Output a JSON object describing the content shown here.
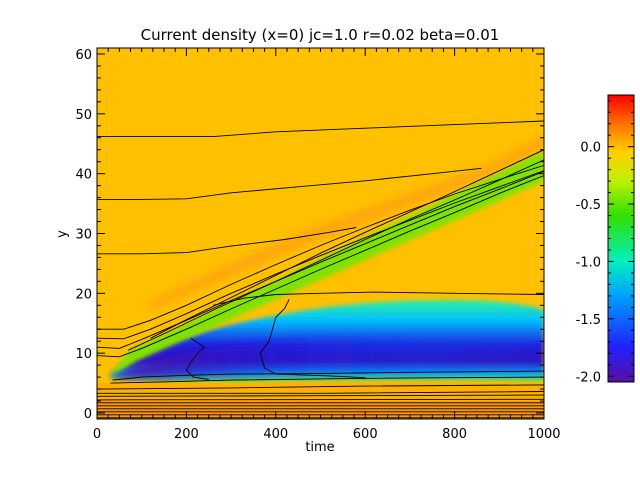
{
  "chart_data": {
    "type": "heatmap",
    "title": "Current density (x=0) jc=1.0 r=0.02 beta=0.01",
    "xlabel": "time",
    "ylabel": "y",
    "xlim": [
      0,
      1000
    ],
    "ylim": [
      -1,
      61
    ],
    "x_ticks": [
      0,
      200,
      400,
      600,
      800,
      1000
    ],
    "y_ticks": [
      0,
      10,
      20,
      30,
      40,
      50,
      60
    ],
    "colorbar": {
      "range": [
        -2.05,
        0.45
      ],
      "ticks": [
        0.0,
        -0.5,
        -1.0,
        -1.5,
        -2.0
      ],
      "tick_labels": [
        "0.0",
        "-0.5",
        "-1.0",
        "-1.5",
        "-2.0"
      ],
      "colormap": "rainbow (violet = -2.0, red = +0.4)"
    },
    "background_value": 0.15,
    "features": [
      {
        "name": "diagonal front",
        "value": -0.8,
        "from": [
          30,
          9.5
        ],
        "to": [
          1000,
          42
        ],
        "width": 3.5
      },
      {
        "name": "low region",
        "value": -1.9,
        "x_start": 40,
        "y_center": 8.5
      },
      {
        "name": "upper current sheet",
        "value": 0.4,
        "from": [
          80,
          13
        ],
        "to": [
          1000,
          45.5
        ]
      }
    ],
    "contours": [
      [
        [
          0,
          46.2
        ],
        [
          100,
          46.2
        ],
        [
          260,
          46.2
        ],
        [
          400,
          47
        ],
        [
          600,
          47.6
        ],
        [
          800,
          48.2
        ],
        [
          1000,
          48.8
        ]
      ],
      [
        [
          0,
          35.7
        ],
        [
          100,
          35.7
        ],
        [
          200,
          35.8
        ],
        [
          300,
          36.8
        ],
        [
          450,
          37.8
        ],
        [
          600,
          38.8
        ],
        [
          750,
          40
        ],
        [
          860,
          40.9
        ]
      ],
      [
        [
          0,
          26.6
        ],
        [
          100,
          26.6
        ],
        [
          200,
          26.8
        ],
        [
          300,
          27.9
        ],
        [
          420,
          29
        ],
        [
          520,
          30.2
        ],
        [
          580,
          31
        ]
      ],
      [
        [
          0,
          14
        ],
        [
          60,
          14
        ],
        [
          120,
          15.5
        ],
        [
          200,
          18
        ],
        [
          300,
          21.5
        ],
        [
          400,
          24.8
        ],
        [
          500,
          28
        ],
        [
          600,
          31
        ],
        [
          700,
          33.9
        ],
        [
          800,
          36.6
        ],
        [
          900,
          39
        ],
        [
          1000,
          41.4
        ]
      ],
      [
        [
          0,
          12.5
        ],
        [
          60,
          12.4
        ],
        [
          120,
          14
        ],
        [
          200,
          16.6
        ],
        [
          300,
          20
        ],
        [
          400,
          23.2
        ],
        [
          500,
          26.3
        ],
        [
          600,
          29.3
        ],
        [
          700,
          32.2
        ],
        [
          800,
          35.1
        ],
        [
          900,
          37.8
        ],
        [
          1000,
          40.5
        ]
      ],
      [
        [
          0,
          11
        ],
        [
          50,
          10.8
        ],
        [
          100,
          12.3
        ],
        [
          200,
          15.5
        ],
        [
          300,
          18.8
        ],
        [
          400,
          22
        ],
        [
          500,
          25.2
        ],
        [
          600,
          28.3
        ],
        [
          700,
          31.4
        ],
        [
          800,
          34.5
        ],
        [
          900,
          37.4
        ],
        [
          1000,
          40.4
        ]
      ],
      [
        [
          0,
          9.6
        ],
        [
          50,
          9.4
        ],
        [
          100,
          10.8
        ],
        [
          200,
          14
        ],
        [
          300,
          17.4
        ],
        [
          400,
          20.7
        ],
        [
          500,
          24
        ],
        [
          600,
          27.2
        ],
        [
          700,
          30.4
        ],
        [
          800,
          33.5
        ],
        [
          900,
          36.7
        ],
        [
          1000,
          39.7
        ]
      ],
      [
        [
          70,
          10.5
        ],
        [
          160,
          13.6
        ],
        [
          260,
          17.2
        ],
        [
          400,
          22
        ],
        [
          500,
          25.5
        ],
        [
          600,
          29
        ],
        [
          700,
          32.4
        ],
        [
          800,
          35.6
        ],
        [
          900,
          38.9
        ],
        [
          1000,
          42.3
        ]
      ],
      [
        [
          120,
          12.5
        ],
        [
          200,
          15.6
        ],
        [
          300,
          19.3
        ],
        [
          400,
          23
        ],
        [
          500,
          26.7
        ],
        [
          600,
          30.2
        ],
        [
          700,
          33.6
        ],
        [
          800,
          37
        ],
        [
          900,
          40.5
        ],
        [
          1000,
          44
        ]
      ],
      [
        [
          35,
          5.5
        ],
        [
          100,
          6
        ],
        [
          200,
          6.3
        ],
        [
          300,
          6.5
        ],
        [
          500,
          6.6
        ],
        [
          700,
          6.8
        ],
        [
          1000,
          7
        ]
      ],
      [
        [
          30,
          5
        ],
        [
          150,
          5.2
        ],
        [
          300,
          5.5
        ],
        [
          600,
          5.8
        ],
        [
          1000,
          6
        ]
      ],
      [
        [
          0,
          4
        ],
        [
          300,
          4.2
        ],
        [
          600,
          4.5
        ],
        [
          1000,
          4.7
        ]
      ],
      [
        [
          0,
          3.3
        ],
        [
          500,
          3.3
        ],
        [
          1000,
          3.6
        ]
      ],
      [
        [
          0,
          2.8
        ],
        [
          500,
          2.9
        ],
        [
          1000,
          3
        ]
      ],
      [
        [
          0,
          2.2
        ],
        [
          1000,
          2.3
        ]
      ],
      [
        [
          0,
          1.7
        ],
        [
          1000,
          1.7
        ]
      ],
      [
        [
          0,
          1.2
        ],
        [
          1000,
          1.2
        ]
      ],
      [
        [
          0,
          0.7
        ],
        [
          1000,
          0.7
        ]
      ],
      [
        [
          0,
          0.2
        ],
        [
          1000,
          0.2
        ]
      ],
      [
        [
          0,
          -0.3
        ],
        [
          1000,
          -0.3
        ]
      ],
      [
        [
          0,
          -0.8
        ],
        [
          1000,
          -0.8
        ]
      ],
      [
        [
          210,
          12.5
        ],
        [
          240,
          11
        ],
        [
          225,
          10
        ],
        [
          210,
          8.5
        ],
        [
          200,
          7.2
        ],
        [
          215,
          6
        ],
        [
          250,
          5.6
        ]
      ],
      [
        [
          430,
          19
        ],
        [
          420,
          17.5
        ],
        [
          400,
          16
        ],
        [
          385,
          12
        ],
        [
          365,
          10
        ],
        [
          375,
          7.5
        ],
        [
          400,
          6.5
        ],
        [
          520,
          6.2
        ],
        [
          600,
          5.9
        ]
      ],
      [
        [
          260,
          18
        ],
        [
          330,
          19.2
        ],
        [
          400,
          19.8
        ],
        [
          500,
          20
        ],
        [
          620,
          20.2
        ],
        [
          800,
          20
        ],
        [
          1000,
          19.8
        ]
      ]
    ]
  }
}
